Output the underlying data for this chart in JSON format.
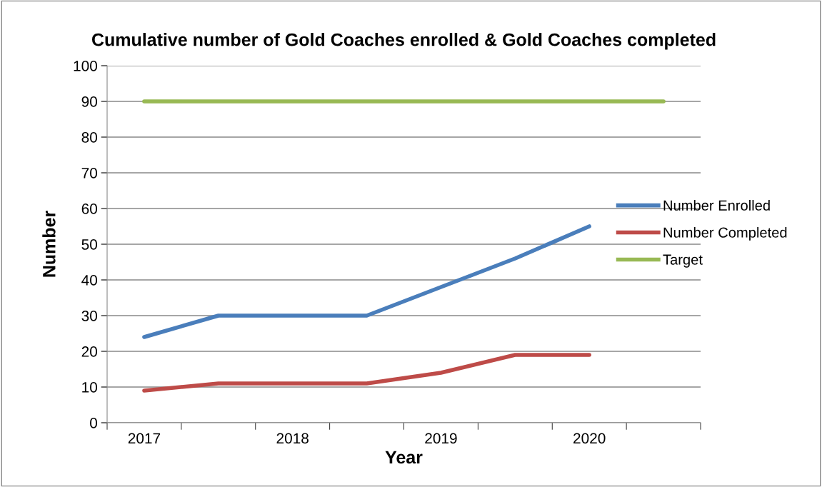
{
  "chart_data": {
    "type": "line",
    "title": "Cumulative number of Gold Coaches enrolled & Gold Coaches completed",
    "xlabel": "Year",
    "ylabel": "Number",
    "categories": [
      "2017",
      null,
      "2018",
      null,
      "2019",
      null,
      "2020",
      null
    ],
    "series": [
      {
        "name": "Number Enrolled",
        "color": "#4a7ebb",
        "values": [
          24,
          30,
          30,
          30,
          38,
          46,
          55,
          null
        ]
      },
      {
        "name": "Number Completed",
        "color": "#be4b48",
        "values": [
          9,
          11,
          11,
          11,
          14,
          19,
          19,
          null
        ]
      },
      {
        "name": "Target",
        "color": "#98b954",
        "values": [
          90,
          90,
          90,
          90,
          90,
          90,
          90,
          90
        ]
      }
    ],
    "ylim": [
      0,
      100
    ],
    "yticks": [
      0,
      10,
      20,
      30,
      40,
      50,
      60,
      70,
      80,
      90,
      100
    ],
    "grid": "y",
    "legend": "right",
    "marker": "none",
    "line_style": "solid"
  }
}
